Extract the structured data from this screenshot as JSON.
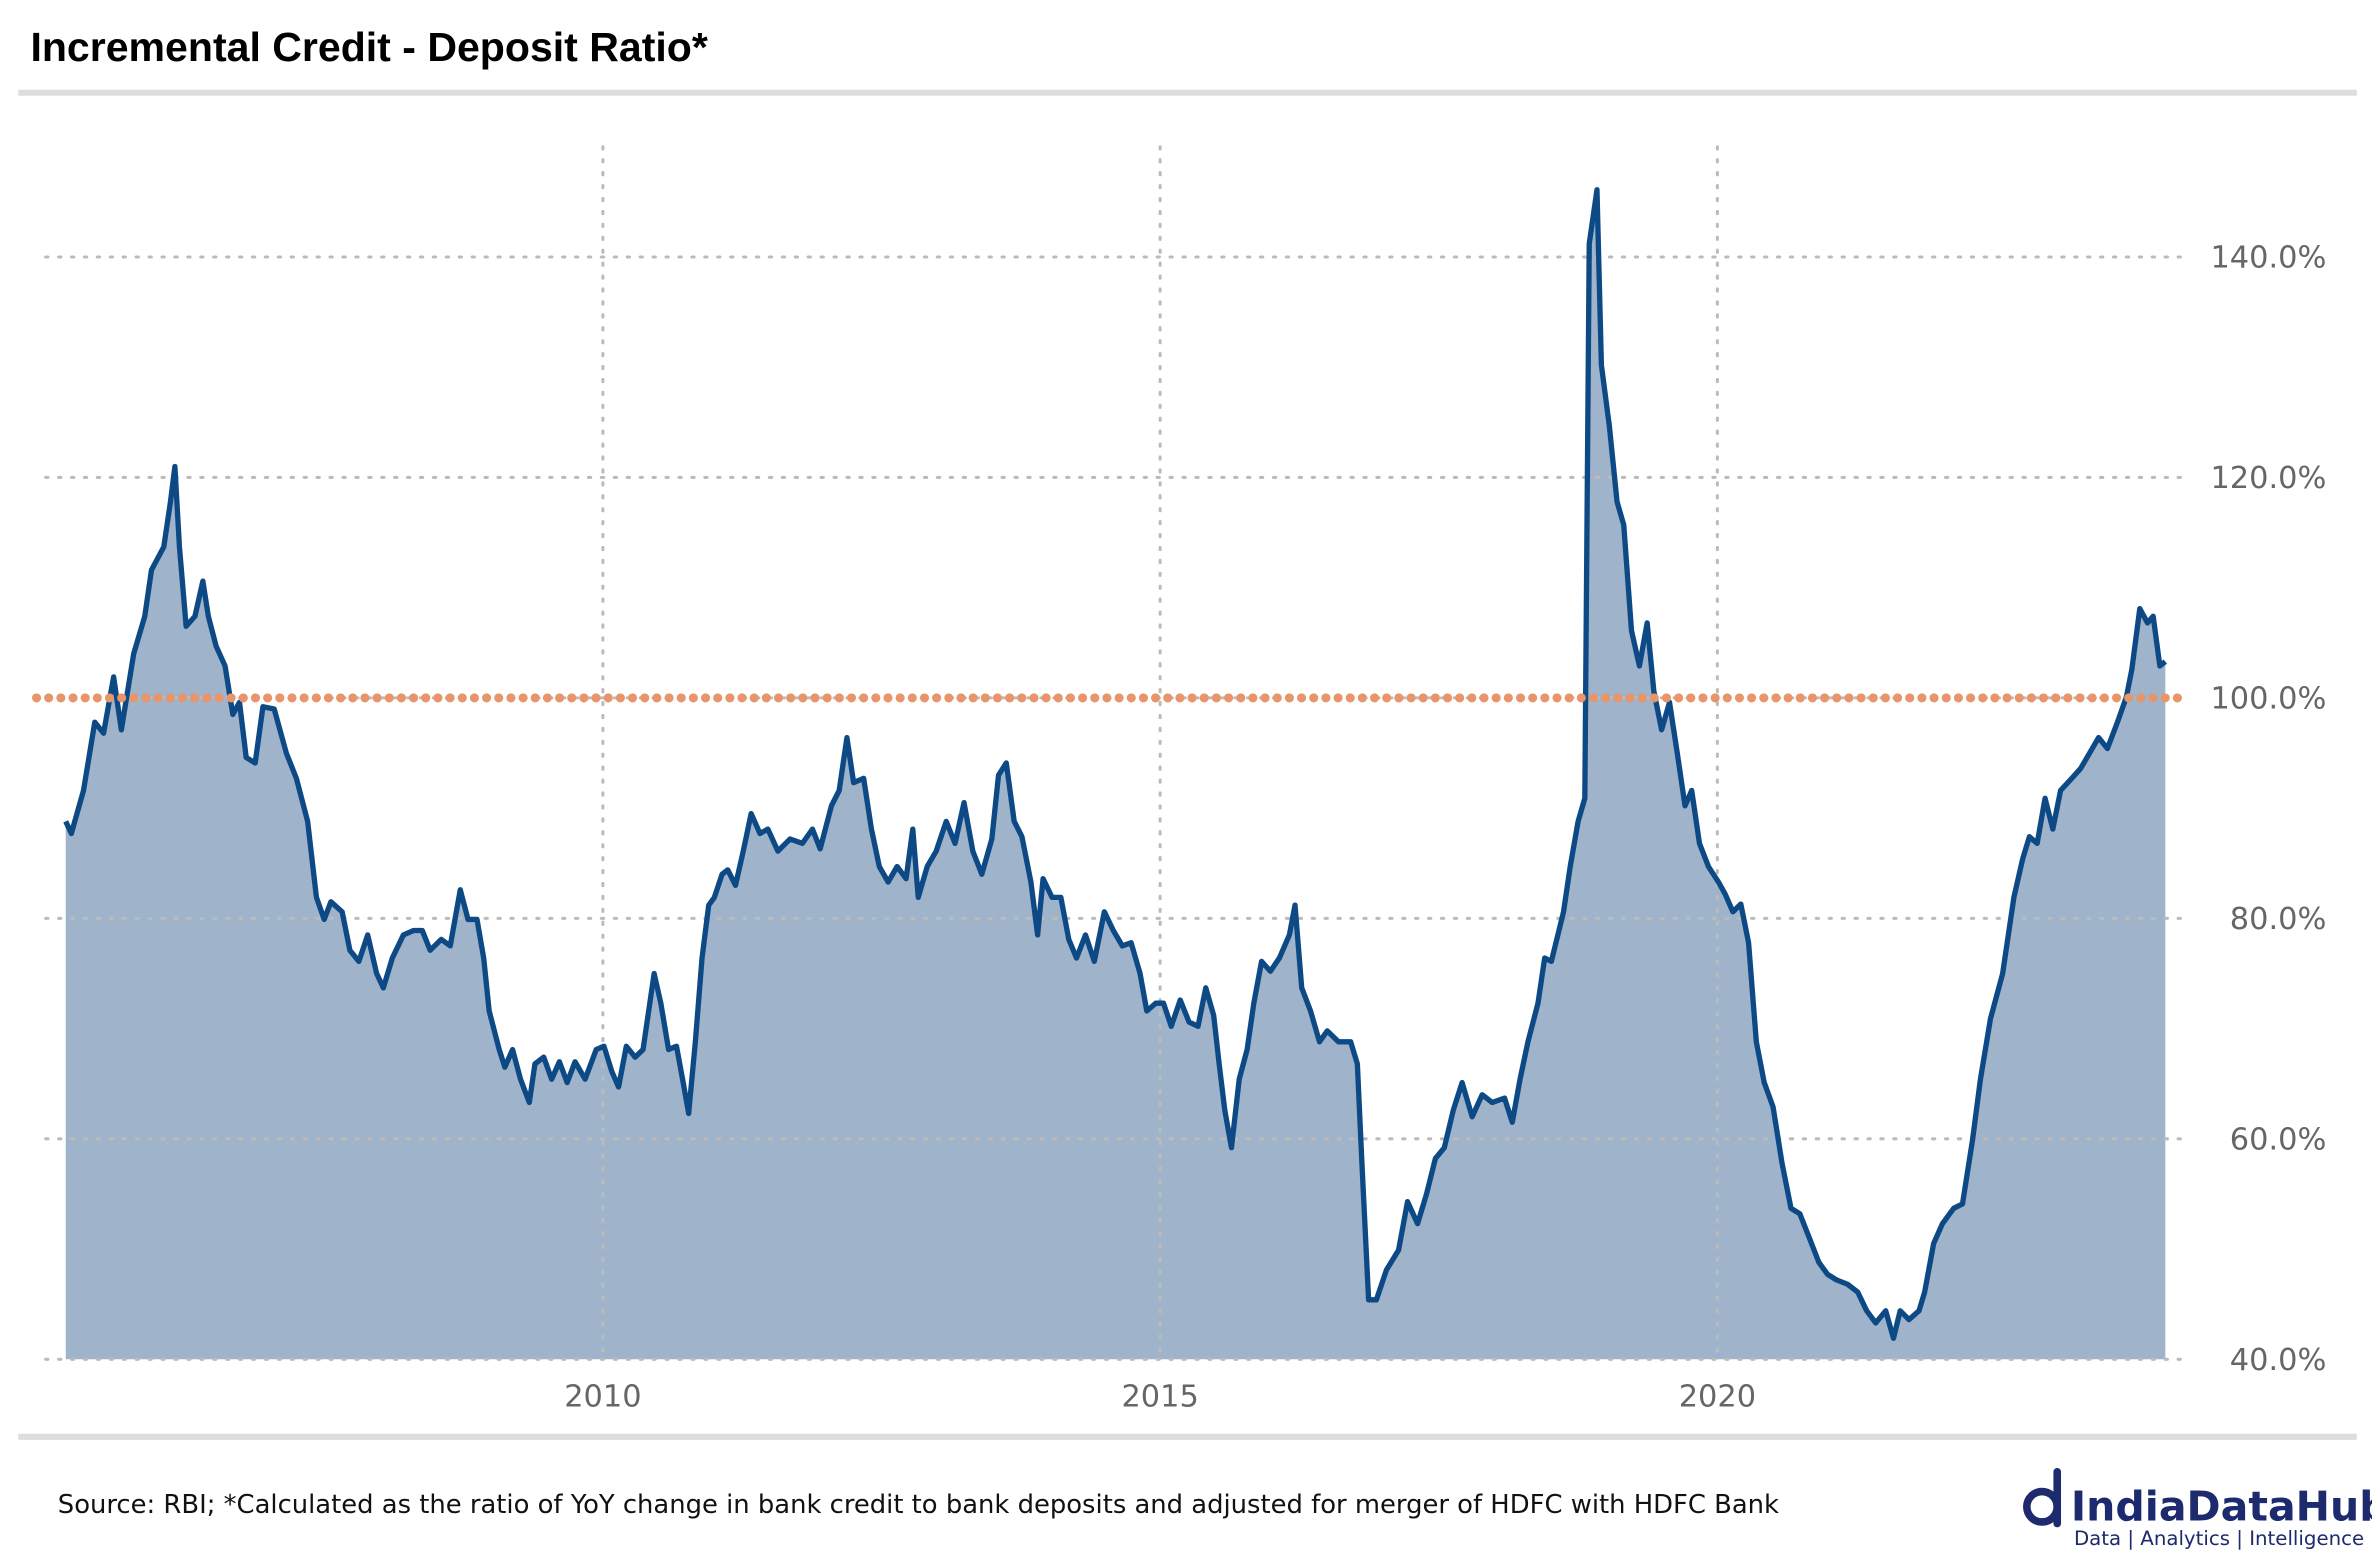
{
  "chart_data": {
    "type": "area",
    "title": "Incremental Credit - Deposit Ratio*",
    "x": [
      2005.18,
      2005.23,
      2005.34,
      2005.44,
      2005.52,
      2005.61,
      2005.68,
      2005.79,
      2005.89,
      2005.95,
      2006.06,
      2006.12,
      2006.16,
      2006.2,
      2006.26,
      2006.34,
      2006.41,
      2006.46,
      2006.53,
      2006.61,
      2006.68,
      2006.74,
      2006.8,
      2006.88,
      2006.95,
      2007.05,
      2007.16,
      2007.25,
      2007.35,
      2007.43,
      2007.5,
      2007.56,
      2007.66,
      2007.73,
      2007.81,
      2007.89,
      2007.97,
      2008.03,
      2008.11,
      2008.21,
      2008.3,
      2008.38,
      2008.45,
      2008.55,
      2008.63,
      2008.72,
      2008.79,
      2008.87,
      2008.93,
      2008.98,
      2009.07,
      2009.12,
      2009.19,
      2009.26,
      2009.34,
      2009.39,
      2009.47,
      2009.54,
      2009.61,
      2009.68,
      2009.75,
      2009.84,
      2009.94,
      2010.01,
      2010.08,
      2010.14,
      2010.21,
      2010.29,
      2010.36,
      2010.46,
      2010.52,
      2010.59,
      2010.66,
      2010.72,
      2010.77,
      2010.83,
      2010.89,
      2010.95,
      2011.0,
      2011.07,
      2011.12,
      2011.19,
      2011.26,
      2011.33,
      2011.41,
      2011.48,
      2011.57,
      2011.68,
      2011.79,
      2011.88,
      2011.95,
      2012.05,
      2012.12,
      2012.19,
      2012.25,
      2012.34,
      2012.41,
      2012.48,
      2012.56,
      2012.64,
      2012.72,
      2012.78,
      2012.83,
      2012.91,
      2012.99,
      2013.08,
      2013.16,
      2013.24,
      2013.32,
      2013.4,
      2013.49,
      2013.55,
      2013.62,
      2013.69,
      2013.76,
      2013.84,
      2013.9,
      2013.95,
      2014.03,
      2014.11,
      2014.18,
      2014.25,
      2014.33,
      2014.41,
      2014.5,
      2014.58,
      2014.66,
      2014.74,
      2014.82,
      2014.88,
      2014.96,
      2015.03,
      2015.1,
      2015.18,
      2015.26,
      2015.34,
      2015.41,
      2015.48,
      2015.53,
      2015.58,
      2015.64,
      2015.71,
      2015.78,
      2015.84,
      2015.91,
      2015.99,
      2016.07,
      2016.16,
      2016.21,
      2016.27,
      2016.35,
      2016.43,
      2016.5,
      2016.6,
      2016.71,
      2016.77,
      2016.81,
      2016.87,
      2016.94,
      2017.03,
      2017.14,
      2017.22,
      2017.31,
      2017.39,
      2017.47,
      2017.55,
      2017.63,
      2017.71,
      2017.8,
      2017.89,
      2017.98,
      2018.09,
      2018.16,
      2018.23,
      2018.3,
      2018.39,
      2018.45,
      2018.51,
      2018.62,
      2018.68,
      2018.75,
      2018.81,
      2018.85,
      2018.92,
      2018.96,
      2019.03,
      2019.1,
      2019.16,
      2019.23,
      2019.3,
      2019.37,
      2019.43,
      2019.5,
      2019.57,
      2019.64,
      2019.71,
      2019.77,
      2019.84,
      2019.92,
      2020.01,
      2020.07,
      2020.14,
      2020.21,
      2020.28,
      2020.35,
      2020.42,
      2020.5,
      2020.58,
      2020.66,
      2020.74,
      2020.83,
      2020.91,
      2020.99,
      2021.07,
      2021.17,
      2021.26,
      2021.34,
      2021.42,
      2021.51,
      2021.58,
      2021.64,
      2021.72,
      2021.81,
      2021.86,
      2021.94,
      2022.02,
      2022.12,
      2022.2,
      2022.29,
      2022.36,
      2022.45,
      2022.56,
      2022.66,
      2022.74,
      2022.8,
      2022.87,
      2022.94,
      2023.01,
      2023.08,
      2023.18,
      2023.26,
      2023.34,
      2023.42,
      2023.5,
      2023.59,
      2023.67,
      2023.72,
      2023.79,
      2023.86,
      2023.91,
      2023.97,
      2024.02
    ],
    "values": [
      88.8,
      87.7,
      91.6,
      97.8,
      96.8,
      101.9,
      97.1,
      104,
      107.4,
      111.6,
      113.7,
      117.8,
      121,
      113.7,
      106.5,
      107.4,
      110.6,
      107.4,
      104.7,
      102.9,
      98.5,
      99.6,
      94.6,
      94.1,
      99.2,
      99,
      95,
      92.7,
      88.8,
      81.9,
      79.9,
      81.5,
      80.6,
      77.1,
      76.1,
      78.5,
      75,
      73.7,
      76.4,
      78.5,
      78.9,
      78.9,
      77.1,
      78.1,
      77.5,
      82.6,
      79.9,
      79.9,
      76.4,
      71.6,
      68.1,
      66.5,
      68.1,
      65.4,
      63.3,
      66.8,
      67.4,
      65.4,
      67,
      65.1,
      67,
      65.4,
      68.1,
      68.4,
      66.1,
      64.7,
      68.4,
      67.4,
      68.1,
      75,
      72.3,
      68.1,
      68.4,
      65.1,
      62.3,
      68.8,
      76.4,
      81.2,
      81.9,
      84,
      84.4,
      83,
      86.1,
      89.5,
      87.7,
      88.1,
      86.1,
      87.2,
      86.8,
      88.1,
      86.3,
      90.2,
      91.6,
      96.4,
      92.3,
      92.7,
      88.1,
      84.7,
      83.3,
      84.7,
      83.6,
      88.1,
      81.9,
      84.7,
      86.1,
      88.8,
      86.8,
      90.5,
      86.1,
      84,
      87.2,
      93,
      94.1,
      88.8,
      87.4,
      83.3,
      78.5,
      83.6,
      81.9,
      81.9,
      78.1,
      76.4,
      78.5,
      76.1,
      80.6,
      78.9,
      77.5,
      77.8,
      75,
      71.6,
      72.3,
      72.3,
      70.2,
      72.6,
      70.6,
      70.2,
      73.7,
      71.2,
      66.8,
      62.6,
      59.2,
      65.4,
      68.1,
      72.3,
      76.1,
      75.2,
      76.4,
      78.5,
      81.2,
      73.7,
      71.6,
      68.8,
      69.8,
      68.8,
      68.8,
      66.8,
      57.8,
      45.4,
      45.4,
      48.1,
      49.9,
      54.3,
      52.3,
      55,
      58.2,
      59.2,
      62.6,
      65.1,
      62,
      64,
      63.3,
      63.7,
      61.5,
      65.4,
      68.8,
      72.3,
      76.4,
      76.1,
      80.6,
      84.7,
      88.8,
      90.9,
      141.2,
      146.1,
      130.2,
      124.7,
      117.8,
      115.7,
      106.1,
      102.9,
      106.8,
      100.6,
      97.1,
      99.6,
      95,
      90.2,
      91.6,
      86.8,
      84.7,
      83.3,
      82.2,
      80.6,
      81.3,
      77.8,
      68.8,
      65.1,
      62.9,
      57.8,
      53.7,
      53.2,
      50.9,
      48.8,
      47.7,
      47.2,
      46.8,
      46.1,
      44.4,
      43.3,
      44.4,
      41.9,
      44.4,
      43.6,
      44.4,
      46.1,
      50.5,
      52.3,
      53.7,
      54.1,
      59.9,
      65.4,
      70.9,
      75,
      81.9,
      85.4,
      87.4,
      86.8,
      90.9,
      88.1,
      91.6,
      92.7,
      93.6,
      95,
      96.4,
      95.4,
      97.8,
      100.1,
      102.6,
      108.1,
      106.8,
      107.4,
      102.9,
      103.3
    ],
    "color": "#0d4a85",
    "fill_color": "#9fb3cb",
    "xlim": [
      2005,
      2024.1
    ],
    "xticks": [
      2010,
      2015,
      2020
    ],
    "ylim": [
      40,
      150
    ],
    "yticks": [
      {
        "value": 40,
        "label": "40.0%"
      },
      {
        "value": 60,
        "label": "60.0%"
      },
      {
        "value": 80,
        "label": "80.0%"
      },
      {
        "value": 100,
        "label": "100.0%"
      },
      {
        "value": 120,
        "label": "120.0%"
      },
      {
        "value": 140,
        "label": "140.0%"
      }
    ],
    "grid": true,
    "reference_line": {
      "value": 100,
      "color": "#e8956b"
    }
  },
  "footer": {
    "source": "Source: RBI; *Calculated as the ratio of YoY change in bank credit to bank deposits and adjusted for merger of HDFC with HDFC Bank",
    "brand": "IndiaDataHub",
    "tagline": "Data | Analytics | Intelligence"
  }
}
